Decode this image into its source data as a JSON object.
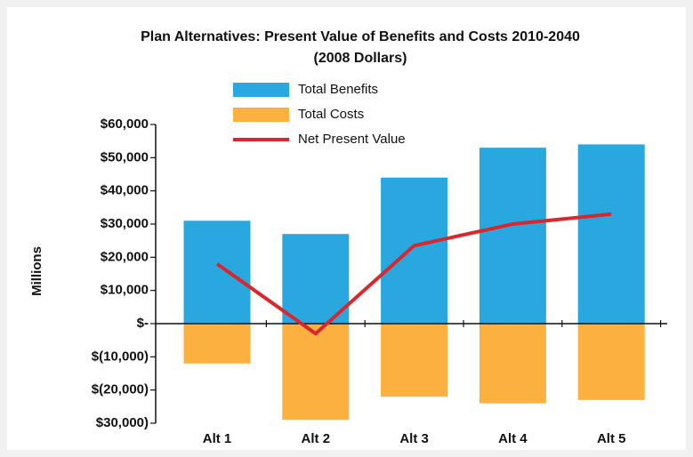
{
  "chart_data": {
    "type": "bar-line",
    "title": "Plan Alternatives: Present Value of Benefits and Costs 2010-2040",
    "subtitle": "(2008 Dollars)",
    "y_label": "Millions",
    "categories": [
      "Alt 1",
      "Alt 2",
      "Alt 3",
      "Alt 4",
      "Alt 5"
    ],
    "series": [
      {
        "name": "Total Benefits",
        "type": "bar",
        "color": "#29a8e0",
        "values": [
          31000,
          27000,
          44000,
          53000,
          54000
        ]
      },
      {
        "name": "Total Costs",
        "type": "bar",
        "color": "#fbb040",
        "values": [
          -12000,
          -29000,
          -22000,
          -24000,
          -23000
        ]
      },
      {
        "name": "Net Present Value",
        "type": "line",
        "color": "#d9272e",
        "values": [
          18000,
          -3000,
          23500,
          30000,
          33000
        ]
      }
    ],
    "ylim": [
      -30000,
      60000
    ],
    "yticks": [
      {
        "value": 60000,
        "label": "$60,000"
      },
      {
        "value": 50000,
        "label": "$50,000"
      },
      {
        "value": 40000,
        "label": "$40,000"
      },
      {
        "value": 30000,
        "label": "$30,000"
      },
      {
        "value": 20000,
        "label": "$20,000"
      },
      {
        "value": 10000,
        "label": "$10,000"
      },
      {
        "value": 0,
        "label": "$-"
      },
      {
        "value": -10000,
        "label": "$(10,000)"
      },
      {
        "value": -20000,
        "label": "$(20,000)"
      },
      {
        "value": -30000,
        "label": "$30,000)"
      }
    ],
    "legend": "top"
  }
}
